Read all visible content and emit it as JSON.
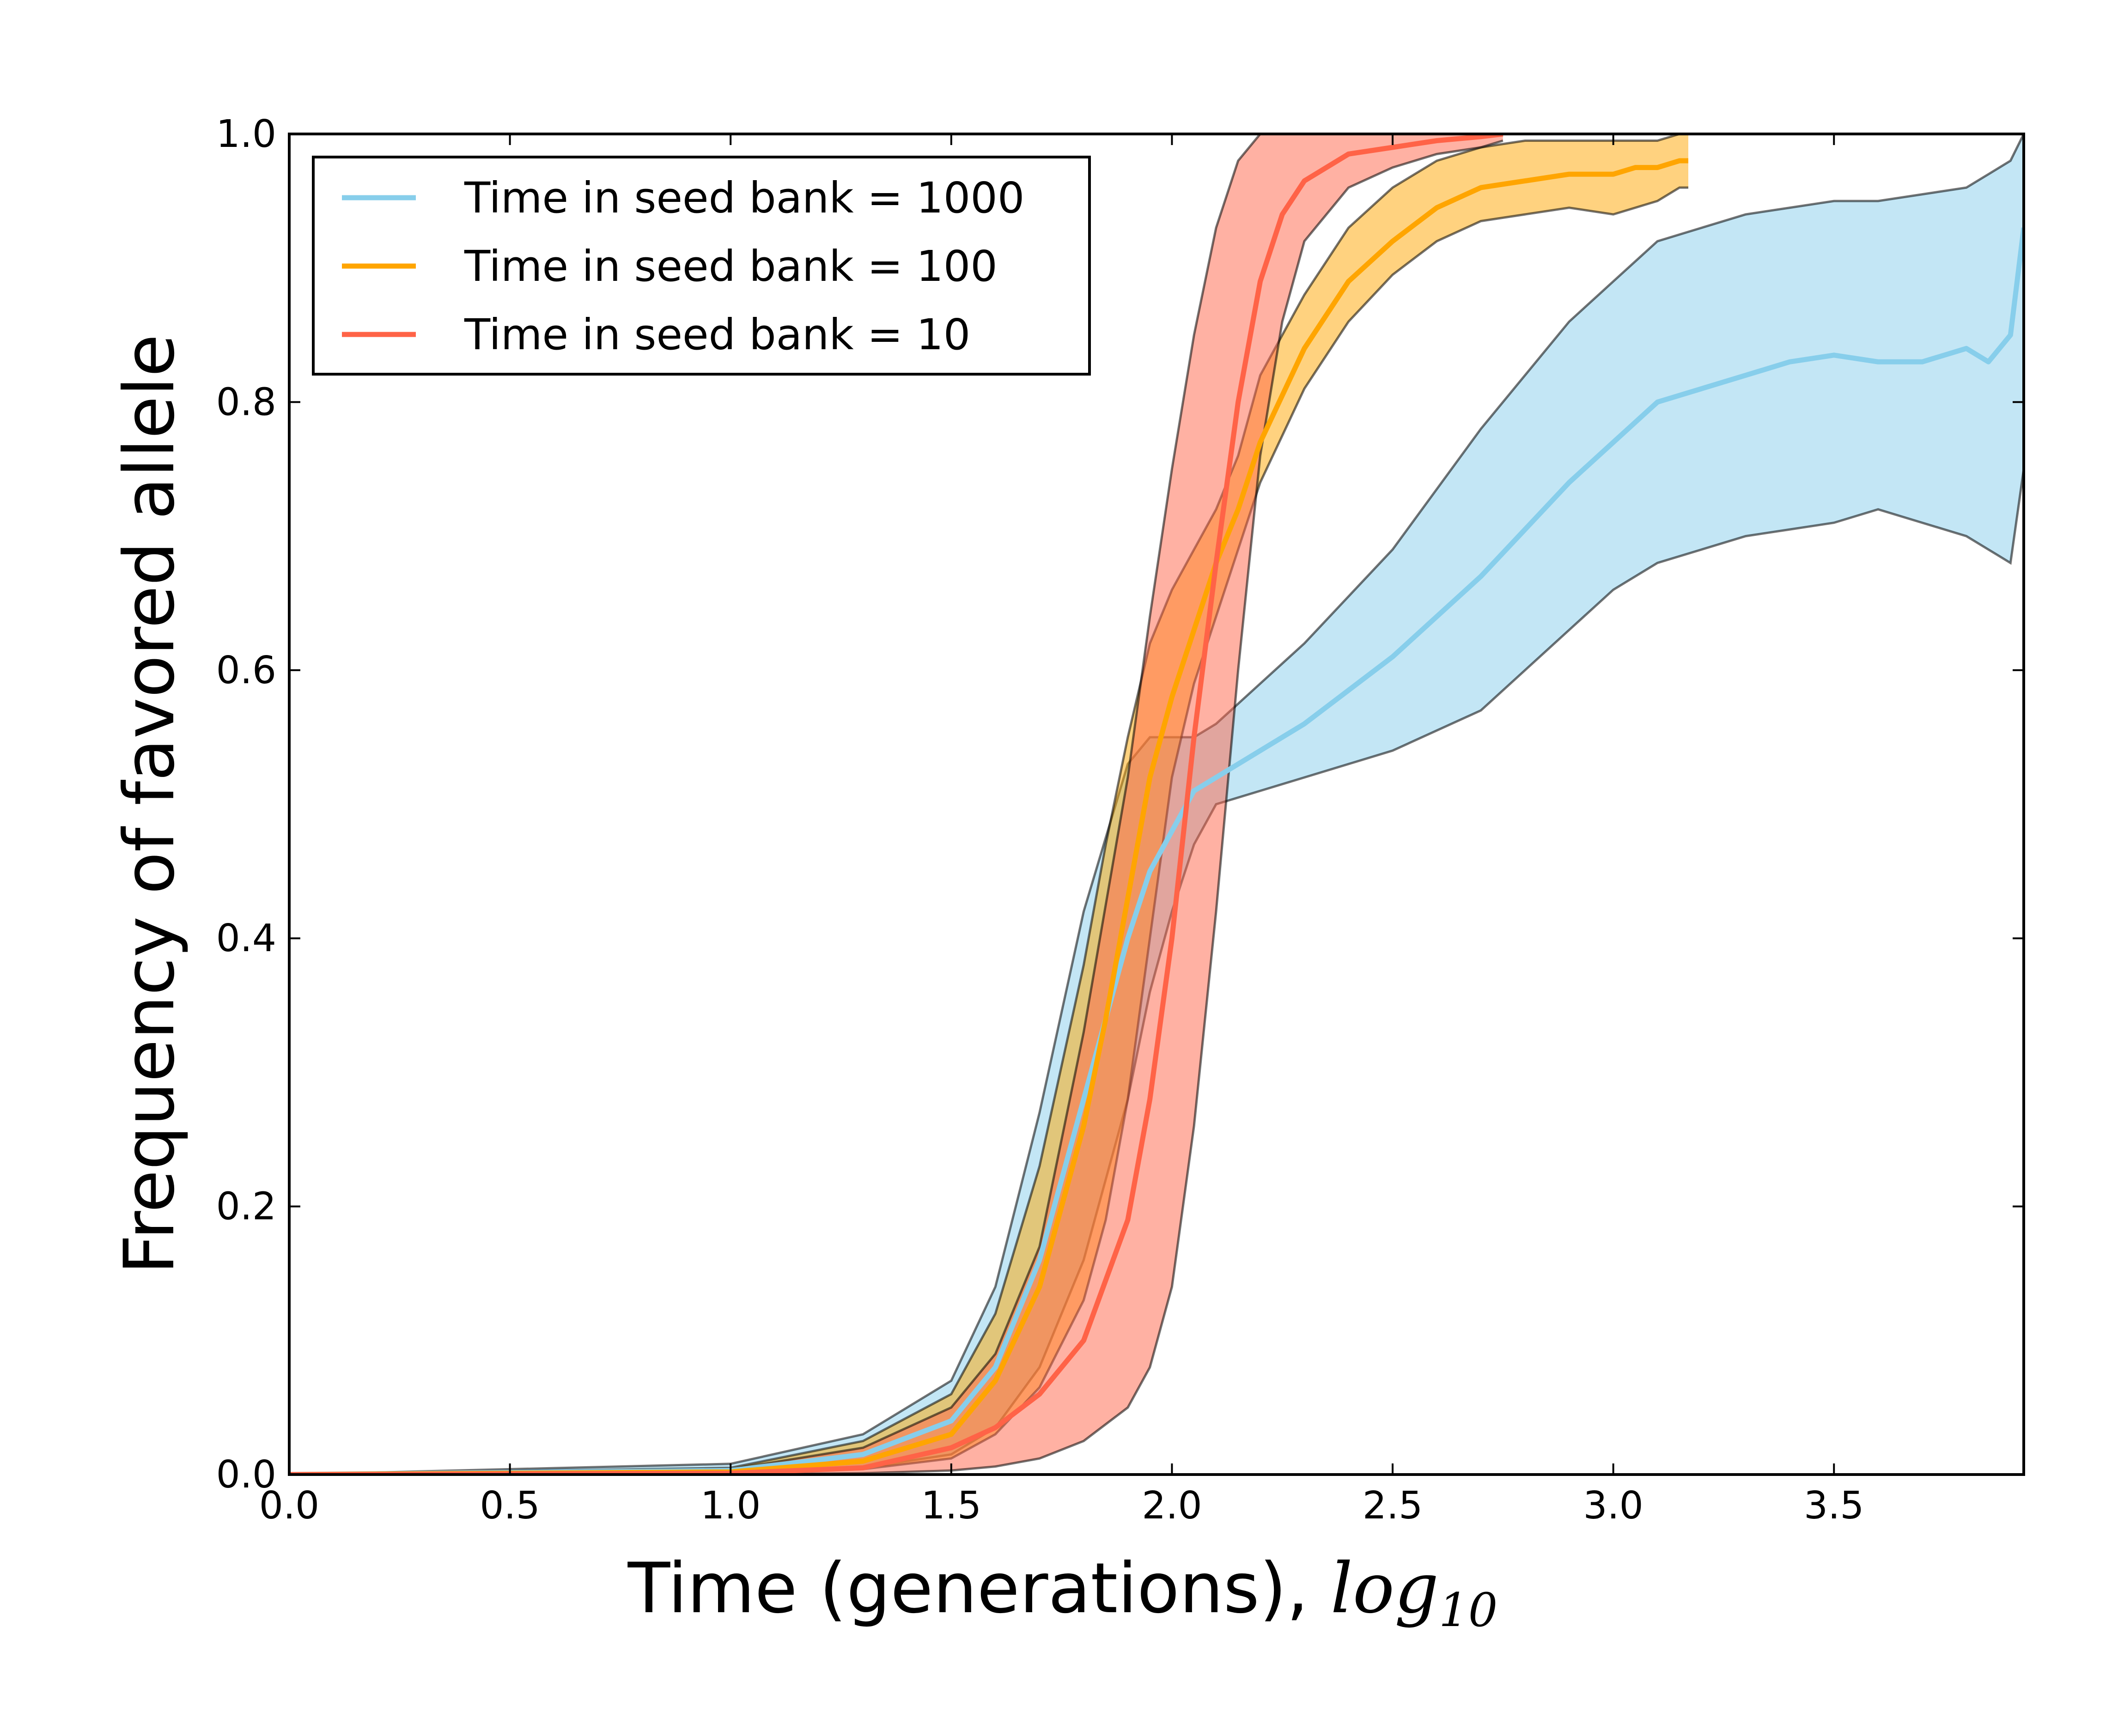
{
  "chart_data": {
    "type": "line",
    "xlabel": "Time (generations), ",
    "xlabel_math": "log",
    "xlabel_math_sub": "10",
    "ylabel": "Frequency of favored allele",
    "xlim": [
      0.0,
      3.93
    ],
    "ylim": [
      0.0,
      1.0
    ],
    "x_ticks": [
      "0.0",
      "0.5",
      "1.0",
      "1.5",
      "2.0",
      "2.5",
      "3.0",
      "3.5"
    ],
    "y_ticks": [
      "0.0",
      "0.2",
      "0.4",
      "0.6",
      "0.8",
      "1.0"
    ],
    "grid": false,
    "legend_position": "top-left",
    "series": [
      {
        "name": "Time in seed bank = 1000",
        "color": "#87CEEB",
        "x": [
          0,
          1.0,
          1.3,
          1.5,
          1.6,
          1.7,
          1.8,
          1.9,
          1.95,
          2.0,
          2.05,
          2.1,
          2.2,
          2.3,
          2.5,
          2.7,
          2.9,
          3.0,
          3.1,
          3.2,
          3.3,
          3.4,
          3.5,
          3.6,
          3.7,
          3.8,
          3.85,
          3.9,
          3.93
        ],
        "mean": [
          0,
          0.003,
          0.015,
          0.04,
          0.08,
          0.16,
          0.28,
          0.4,
          0.45,
          0.48,
          0.51,
          0.52,
          0.54,
          0.56,
          0.61,
          0.67,
          0.74,
          0.77,
          0.8,
          0.81,
          0.82,
          0.83,
          0.835,
          0.83,
          0.83,
          0.84,
          0.83,
          0.85,
          0.93
        ],
        "upper": [
          0,
          0.008,
          0.03,
          0.07,
          0.14,
          0.27,
          0.42,
          0.53,
          0.55,
          0.55,
          0.55,
          0.56,
          0.59,
          0.62,
          0.69,
          0.78,
          0.86,
          0.89,
          0.92,
          0.93,
          0.94,
          0.945,
          0.95,
          0.95,
          0.955,
          0.96,
          0.97,
          0.98,
          1.0
        ],
        "lower": [
          0,
          0.001,
          0.005,
          0.015,
          0.035,
          0.08,
          0.16,
          0.28,
          0.36,
          0.42,
          0.47,
          0.5,
          0.51,
          0.52,
          0.54,
          0.57,
          0.63,
          0.66,
          0.68,
          0.69,
          0.7,
          0.705,
          0.71,
          0.72,
          0.71,
          0.7,
          0.69,
          0.68,
          0.75
        ]
      },
      {
        "name": "Time in seed bank = 100",
        "color": "#FFA500",
        "x": [
          0,
          1.0,
          1.3,
          1.5,
          1.6,
          1.7,
          1.8,
          1.85,
          1.9,
          1.95,
          2.0,
          2.05,
          2.1,
          2.15,
          2.2,
          2.3,
          2.4,
          2.5,
          2.6,
          2.7,
          2.8,
          2.9,
          3.0,
          3.05,
          3.1,
          3.15,
          3.17
        ],
        "mean": [
          0,
          0.002,
          0.01,
          0.03,
          0.07,
          0.14,
          0.26,
          0.34,
          0.43,
          0.52,
          0.58,
          0.63,
          0.68,
          0.72,
          0.77,
          0.84,
          0.89,
          0.92,
          0.945,
          0.96,
          0.965,
          0.97,
          0.97,
          0.975,
          0.975,
          0.98,
          0.98
        ],
        "upper": [
          0,
          0.005,
          0.025,
          0.06,
          0.12,
          0.23,
          0.38,
          0.47,
          0.55,
          0.62,
          0.66,
          0.69,
          0.72,
          0.76,
          0.82,
          0.88,
          0.93,
          0.96,
          0.98,
          0.99,
          0.995,
          0.995,
          0.995,
          0.995,
          0.995,
          1.0,
          1.0
        ],
        "lower": [
          0,
          0.001,
          0.004,
          0.012,
          0.03,
          0.065,
          0.13,
          0.19,
          0.28,
          0.4,
          0.52,
          0.59,
          0.64,
          0.69,
          0.74,
          0.81,
          0.86,
          0.895,
          0.92,
          0.935,
          0.94,
          0.945,
          0.94,
          0.945,
          0.95,
          0.96,
          0.96
        ]
      },
      {
        "name": "Time in seed bank = 10",
        "color": "#FF6347",
        "x": [
          0,
          1.0,
          1.3,
          1.5,
          1.6,
          1.7,
          1.8,
          1.9,
          1.95,
          2.0,
          2.05,
          2.1,
          2.15,
          2.2,
          2.25,
          2.3,
          2.4,
          2.5,
          2.6,
          2.7,
          2.75
        ],
        "mean": [
          0,
          0.001,
          0.005,
          0.02,
          0.035,
          0.06,
          0.1,
          0.19,
          0.28,
          0.4,
          0.55,
          0.68,
          0.8,
          0.89,
          0.94,
          0.965,
          0.985,
          0.99,
          0.995,
          0.998,
          1.0
        ],
        "upper": [
          0,
          0.004,
          0.02,
          0.05,
          0.09,
          0.17,
          0.33,
          0.52,
          0.64,
          0.75,
          0.85,
          0.93,
          0.98,
          1.0,
          1.0,
          1.0,
          1.0,
          1.0,
          1.0,
          1.0,
          1.0
        ],
        "lower": [
          0,
          0.0,
          0.001,
          0.003,
          0.006,
          0.012,
          0.025,
          0.05,
          0.08,
          0.14,
          0.26,
          0.42,
          0.6,
          0.76,
          0.86,
          0.92,
          0.96,
          0.975,
          0.985,
          0.99,
          0.995
        ]
      }
    ]
  }
}
